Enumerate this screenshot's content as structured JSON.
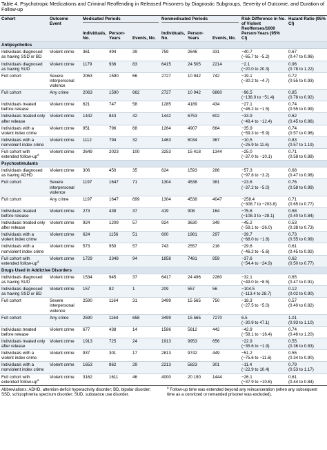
{
  "title": "Table 4. Psychotropic Medications and Criminal Reoffending in Released Prisoners by Diagnostic Subgroups, Severity of Outcome, and Duration of Follow-up",
  "header": {
    "groups": [
      "Medicated Periods",
      "Nonmedicated Periods"
    ],
    "risk": "Risk Difference in No. of Violent Reoffenses/1000 Person-Years (95% CI)",
    "hazard": "Hazard Ratio (95% CI)",
    "cohort": "Cohort",
    "outcome": "Outcome Event",
    "columns": [
      "Individuals, No.",
      "Person-Years",
      "Events, No.",
      "Individuals, No.",
      "Person-Years",
      "Events, No."
    ]
  },
  "sections": [
    {
      "name": "Antipsychotics",
      "rows": [
        {
          "cohort": "Individuals diagnosed as having SSD or BD",
          "outcome": "Violent crime",
          "cells": [
            "361",
            "494",
            "39",
            "759",
            "2646",
            "331"
          ],
          "rd": "−40.7",
          "rd_ci": "(−65.7 to −5.2)",
          "hr": "0.67",
          "hr_ci": "(0.47 to 0.96)"
        },
        {
          "cohort": "Individuals diagnosed as having SUD",
          "outcome": "Violent crime",
          "cells": [
            "1179",
            "936",
            "83",
            "6415",
            "24 505",
            "2214"
          ],
          "rd": "−2.1",
          "rd_ci": "(−20.0 to 20.3)",
          "hr": "0.96",
          "hr_ci": "(0.78 to 1.22)"
        },
        {
          "cohort": "Full cohort",
          "outcome": "Severe interpersonal violence",
          "cells": [
            "2063",
            "1590",
            "66",
            "2727",
            "10 942",
            "742"
          ],
          "rd": "−19.1",
          "rd_ci": "(−30.2 to −4.7)",
          "hr": "0.72",
          "hr_ci": "(0.55 to 0.93)"
        },
        {
          "cohort": "Full cohort",
          "outcome": "Any crime",
          "cells": [
            "2063",
            "1590",
            "662",
            "2727",
            "10 942",
            "6860"
          ],
          "rd": "−96.5",
          "rd_ci": "(−138.0 to −51.4)",
          "hr": "0.85",
          "hr_ci": "(0.78 to 0.92)"
        },
        {
          "cohort": "Individuals treated before release",
          "outcome": "Violent crime",
          "cells": [
            "621",
            "747",
            "58",
            "1285",
            "4189",
            "434"
          ],
          "rd": "−27.1",
          "rd_ci": "(−46.2 to −1.5)",
          "hr": "0.74",
          "hr_ci": "(0.55 to 0.99)"
        },
        {
          "cohort": "Individuals treated only after release",
          "outcome": "Violent crime",
          "cells": [
            "1442",
            "843",
            "42",
            "1442",
            "6753",
            "602"
          ],
          "rd": "−33.9",
          "rd_ci": "(−49.4 to −12.4)",
          "hr": "0.62",
          "hr_ci": "(0.45 to 0.86)"
        },
        {
          "cohort": "Individuals with a violent index crime",
          "outcome": "Violent crime",
          "cells": [
            "951",
            "796",
            "68",
            "1264",
            "4907",
            "664"
          ],
          "rd": "−35.9",
          "rd_ci": "(−59.3 to −5.9)",
          "hr": "0.74",
          "hr_ci": "(0.57 to 0.96)"
        },
        {
          "cohort": "Individuals with a nonviolent index crime",
          "outcome": "Violent crime",
          "cells": [
            "1112",
            "794",
            "32",
            "1463",
            "6034",
            "367"
          ],
          "rd": "−10.5",
          "rd_ci": "(−25.9 to 11.6)",
          "hr": "0.83",
          "hr_ci": "(0.57 to 1.19)"
        },
        {
          "cohort": "Full cohort with extended follow-up",
          "note": "a",
          "outcome": "Violent crime",
          "cells": [
            "2649",
            "2023",
            "100",
            "3253",
            "15 418",
            "1344"
          ],
          "rd": "−25.0",
          "rd_ci": "(−37.0 to −10.1)",
          "hr": "0.71",
          "hr_ci": "(0.58 to 0.88)"
        }
      ]
    },
    {
      "name": "Psychostimulants",
      "rows": [
        {
          "cohort": "Individuals diagnosed as having ADHD",
          "outcome": "Violent crime",
          "cells": [
            "306",
            "450",
            "35",
            "624",
            "1593",
            "286"
          ],
          "rd": "−57.3",
          "rd_ci": "(−97.8 to −3.2)",
          "hr": "0.68",
          "hr_ci": "(0.47 to 0.98)"
        },
        {
          "cohort": "Full cohort",
          "outcome": "Severe interpersonal violence",
          "cells": [
            "1197",
            "1647",
            "71",
            "1304",
            "4538",
            "381"
          ],
          "rd": "−23.6",
          "rd_ci": "(−37.2 to −5.0)",
          "hr": "0.76",
          "hr_ci": "(0.58 to 0.99)"
        },
        {
          "cohort": "Full cohort",
          "outcome": "Any crime",
          "cells": [
            "1197",
            "1647",
            "699",
            "1304",
            "4538",
            "4047"
          ],
          "rd": "−258.4",
          "rd_ci": "(−308.7 to −203.8)",
          "hr": "0.71",
          "hr_ci": "(0.65 to 0.77)"
        },
        {
          "cohort": "Individuals treated before release",
          "outcome": "Violent crime",
          "cells": [
            "273",
            "438",
            "37",
            "419",
            "908",
            "164"
          ],
          "rd": "−75.6",
          "rd_ci": "(−108.3 to −28.1)",
          "hr": "0.58",
          "hr_ci": "(0.40 to 0.84)"
        },
        {
          "cohort": "Individuals treated only after release",
          "outcome": "Violent crime",
          "cells": [
            "924",
            "1209",
            "57",
            "924",
            "3630",
            "349"
          ],
          "rd": "−45.2",
          "rd_ci": "(−59.1 to −26.0)",
          "hr": "0.53",
          "hr_ci": "(0.38 to 0.73)"
        },
        {
          "cohort": "Individuals with a violent index crime",
          "outcome": "Violent crime",
          "cells": [
            "624",
            "1156",
            "51",
            "600",
            "1981",
            "297"
          ],
          "rd": "−39.7",
          "rd_ci": "(−68.0 to −1.8)",
          "hr": "0.73",
          "hr_ci": "(0.55 to 0.99)"
        },
        {
          "cohort": "Individuals with a nonviolent index crime",
          "outcome": "Violent crime",
          "cells": [
            "573",
            "950",
            "57",
            "743",
            "2557",
            "216"
          ],
          "rd": "−29.6",
          "rd_ci": "(−46.2 to −5.6)",
          "hr": "0.61",
          "hr_ci": "(0.45 to 0.92)"
        },
        {
          "cohort": "Full cohort with extended follow-up",
          "note": "a",
          "outcome": "Violent crime",
          "cells": [
            "1729",
            "2348",
            "94",
            "1858",
            "7481",
            "859"
          ],
          "rd": "−37.6",
          "rd_ci": "(−54.4 to −24.9)",
          "hr": "0.62",
          "hr_ci": "(0.50 to 0.77)"
        }
      ]
    },
    {
      "name": "Drugs Used in Addictive Disorders",
      "rows": [
        {
          "cohort": "Individuals diagnosed as having SUD",
          "outcome": "Violent crime",
          "cells": [
            "1534",
            "945",
            "37",
            "6417",
            "24 496",
            "2260"
          ],
          "rd": "−32.1",
          "rd_ci": "(−49.0 to −8.5)",
          "hr": "0.65",
          "hr_ci": "(0.47 to 0.91)"
        },
        {
          "cohort": "Individuals diagnosed as having SSD or BD",
          "outcome": "Violent crime",
          "cells": [
            "157",
            "82",
            "1",
            "209",
            "557",
            "56"
          ],
          "rd": "−104.5",
          "rd_ci": "(−113.4 to 28.7)",
          "hr": "0.12",
          "hr_ci": "(0.02 to 0.90)"
        },
        {
          "cohort": "Full cohort",
          "outcome": "Severe interpersonal violence",
          "cells": [
            "2590",
            "1164",
            "31",
            "3499",
            "15 565",
            "750"
          ],
          "rd": "−18.3",
          "rd_ci": "(−27.5 to −5.0)",
          "hr": "0.57",
          "hr_ci": "(0.40 to 0.82)"
        },
        {
          "cohort": "Full cohort",
          "outcome": "Any crime",
          "cells": [
            "2590",
            "1164",
            "658",
            "3499",
            "15 565",
            "7270"
          ],
          "rd": "6.5",
          "rd_ci": "(−30.9 to 47.1)",
          "hr": "1.01",
          "hr_ci": "(0.93 to 1.10)"
        },
        {
          "cohort": "Individuals treated before release",
          "outcome": "Violent crime",
          "cells": [
            "677",
            "438",
            "14",
            "1586",
            "5612",
            "442"
          ],
          "rd": "−42.9",
          "rd_ci": "(−58.1 to −16.4)",
          "hr": "0.74",
          "hr_ci": "(0.46 to 1.20)"
        },
        {
          "cohort": "Individuals treated only after release",
          "outcome": "Violent crime",
          "cells": [
            "1913",
            "725",
            "24",
            "1913",
            "9953",
            "656"
          ],
          "rd": "−22.9",
          "rd_ci": "(−35.6 to −1.9)",
          "hr": "0.55",
          "hr_ci": "(0.36 to 0.83)"
        },
        {
          "cohort": "Individuals with a violent index crime",
          "outcome": "Violent crime",
          "cells": [
            "937",
            "301",
            "17",
            "2813",
            "9742",
            "449"
          ],
          "rd": "−51.2",
          "rd_ci": "(−75.6 to −11.6)",
          "hr": "0.55",
          "hr_ci": "(0.34 to 0.90)"
        },
        {
          "cohort": "Individuals with a nonviolent index crime",
          "outcome": "Violent crime",
          "cells": [
            "1653",
            "862",
            "29",
            "2213",
            "5823",
            "301"
          ],
          "rd": "−11.4",
          "rd_ci": "(−22.9 to 10.4)",
          "hr": "0.79",
          "hr_ci": "(0.53 to 1.17)"
        },
        {
          "cohort": "Full cohort with extended follow-up",
          "note": "a",
          "outcome": "Violent crime",
          "cells": [
            "3162",
            "1611",
            "46",
            "4000",
            "20 190",
            "1444"
          ],
          "rd": "−26.1",
          "rd_ci": "(−37.9 to −10.6)",
          "hr": "0.61",
          "hr_ci": "(0.44 to 0.84)"
        }
      ]
    }
  ],
  "footnotes": {
    "left": "Abbreviations: ADHD, attention-deficit hyperactivity disorder; BD, bipolar disorder; SSD, schizophrenia spectrum disorder; SUD, substance use disorder.",
    "right": {
      "mark": "a",
      "text": "Follow-up time was extended beyond any reincarceration (when any subsequent time as a convicted or remanded prisoner was excluded)."
    }
  }
}
